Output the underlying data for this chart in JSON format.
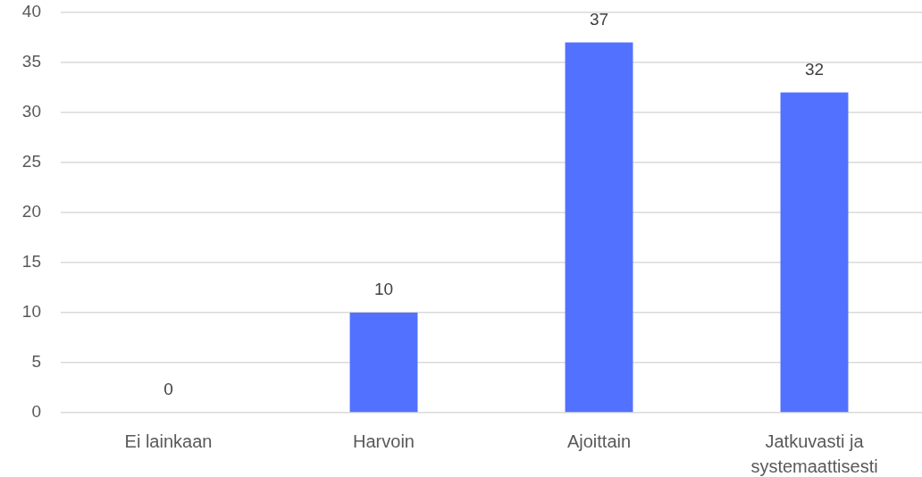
{
  "chart_data": {
    "type": "bar",
    "categories": [
      "Ei lainkaan",
      "Harvoin",
      "Ajoittain",
      "Jatkuvasti ja systemaattisesti"
    ],
    "values": [
      0,
      10,
      37,
      32
    ],
    "color": "#5271ff",
    "ylim": [
      0,
      40
    ],
    "yticks": [
      0,
      5,
      10,
      15,
      20,
      25,
      30,
      35,
      40
    ],
    "grid": "y",
    "data_labels": true
  }
}
